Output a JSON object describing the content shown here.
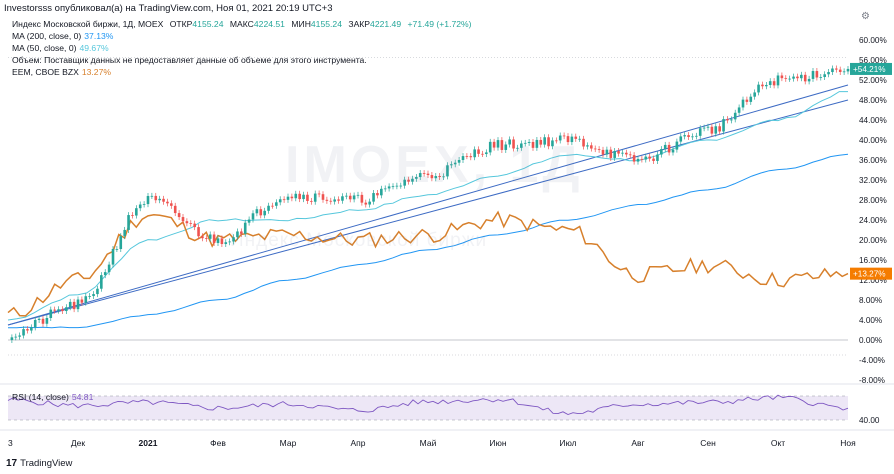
{
  "header": {
    "text": "Investorsss опубликовал(а) на TradingView.com, Ноя 01, 2021 20:19 UTC+3",
    "gear_icon": "gear-icon"
  },
  "legend": {
    "title": "Индекс Московской биржи, 1Д, MOEX",
    "open_label": "ОТКР",
    "open": "4155.24",
    "high_label": "МАКС",
    "high": "4224.51",
    "low_label": "МИН",
    "low": "4155.24",
    "close_label": "ЗАКР",
    "close": "4221.49",
    "change": "+71.49 (+1.72%)",
    "ma200_label": "MA (200, close, 0)",
    "ma200_value": "37.13%",
    "ma50_label": "MA (50, close, 0)",
    "ma50_value": "49.67%",
    "volume_note": "Объем: Поставщик данных не предоставляет данные об объеме для этого инструмента.",
    "eem_label": "EEM, CBOE BZX",
    "eem_value": "13.27%"
  },
  "watermark": {
    "symbol": "IMOEX, 1Д",
    "name": "Индекс Московской биржи"
  },
  "rsi": {
    "label": "RSI (14, close)",
    "value": "54.81"
  },
  "branding": "TradingView",
  "colors": {
    "candle_up": "#26a69a",
    "candle_down": "#ef5350",
    "ma200": "#2196f3",
    "ma50": "#56c7dc",
    "eem": "#d7802c",
    "trendline": "#3d6bc4",
    "rsi": "#7e57c2",
    "rsi_band": "#ede7f6",
    "badge_main": "#26a69a",
    "badge_eem": "#f57c00"
  },
  "chart_data": [
    {
      "type": "candlestick",
      "title": "Индекс Московской биржи, 1Д, MOEX",
      "y_unit": "% change",
      "ylim": [
        -8,
        62
      ],
      "y_ticks": [
        "60.00%",
        "56.00%",
        "52.00%",
        "48.00%",
        "44.00%",
        "40.00%",
        "36.00%",
        "32.00%",
        "28.00%",
        "24.00%",
        "20.00%",
        "16.00%",
        "12.00%",
        "8.00%",
        "4.00%",
        "0.00%",
        "-4.00%",
        "-8.00%"
      ],
      "x_ticks": [
        "3",
        "Дек",
        "2021",
        "Фев",
        "Мар",
        "Апр",
        "Май",
        "Июн",
        "Июл",
        "Авг",
        "Сен",
        "Окт",
        "Ноя"
      ],
      "grid": false,
      "last_value_label": "+54.21%",
      "series": [
        {
          "name": "Индекс Московской биржи",
          "x": [
            "3",
            "Дек",
            "2021",
            "Фев",
            "Мар",
            "Апр",
            "Май",
            "Июн",
            "Июл",
            "Авг",
            "Сен",
            "Окт",
            "Ноя"
          ],
          "values": [
            1,
            7,
            28,
            20,
            29,
            28,
            33,
            39,
            40,
            36,
            42,
            52,
            54.21
          ]
        },
        {
          "name": "MA (200, close, 0)",
          "x": [
            "3",
            "Дек",
            "2021",
            "Фев",
            "Мар",
            "Апр",
            "Май",
            "Июн",
            "Июл",
            "Авг",
            "Сен",
            "Окт",
            "Ноя"
          ],
          "values": [
            2.5,
            2.5,
            5,
            8,
            12,
            15,
            18,
            21,
            24,
            27,
            30,
            34,
            37.13
          ]
        },
        {
          "name": "MA (50, close, 0)",
          "x": [
            "3",
            "Дек",
            "2021",
            "Фев",
            "Мар",
            "Апр",
            "Май",
            "Июн",
            "Июл",
            "Авг",
            "Сен",
            "Окт",
            "Ноя"
          ],
          "values": [
            4,
            9,
            20,
            24,
            24,
            26,
            29,
            33,
            37,
            36,
            40,
            44,
            49.67
          ]
        },
        {
          "name": "EEM, CBOE BZX",
          "x": [
            "3",
            "Дек",
            "2021",
            "Фев",
            "Мар",
            "Апр",
            "Май",
            "Июн",
            "Июл",
            "Авг",
            "Сен",
            "Окт",
            "Ноя"
          ],
          "values": [
            5,
            12,
            25,
            20,
            21,
            20,
            21,
            24,
            22,
            13,
            15,
            12,
            13.27
          ]
        }
      ],
      "eem_value_label": "+13.27%"
    },
    {
      "type": "line",
      "title": "RSI (14, close)",
      "ylim": [
        30,
        80
      ],
      "y_ticks": [
        "40.00"
      ],
      "series": [
        {
          "name": "RSI (14, close)",
          "values": [
            65,
            58,
            62,
            55,
            60,
            52,
            63,
            66,
            48,
            60,
            62,
            68,
            54.81
          ]
        }
      ]
    }
  ]
}
